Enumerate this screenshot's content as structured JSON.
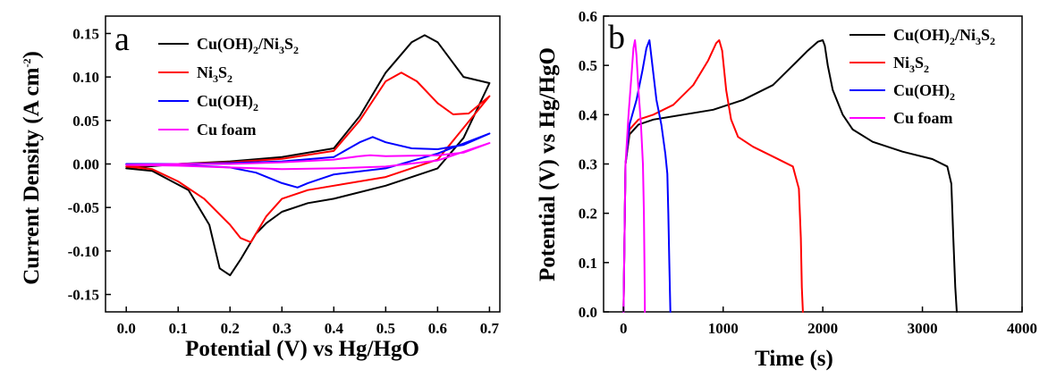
{
  "chart_data": [
    {
      "type": "line",
      "panel": "a",
      "xlabel": "Potential (V) vs Hg/HgO",
      "ylabel_main": "Current Density (A cm",
      "ylabel_sup": "-2",
      "ylabel_end": ")",
      "xlim": [
        -0.04,
        0.72
      ],
      "ylim": [
        -0.17,
        0.17
      ],
      "xticks": [
        0.0,
        0.1,
        0.2,
        0.3,
        0.4,
        0.5,
        0.6,
        0.7
      ],
      "xtick_labels": [
        "0.0",
        "0.1",
        "0.2",
        "0.3",
        "0.4",
        "0.5",
        "0.6",
        "0.7"
      ],
      "yticks": [
        0.15,
        0.1,
        0.05,
        0.0,
        -0.05,
        -0.1,
        -0.15
      ],
      "ytick_labels": [
        "0.15",
        "0.10",
        "0.05",
        "0.00",
        "-0.05",
        "-0.10",
        "-0.15"
      ],
      "legend_position": "top-right",
      "series": [
        {
          "name": "Cu(OH)2/Ni3S2",
          "legend_parts": [
            "Cu(OH)",
            "2",
            "/Ni",
            "3",
            "S",
            "2"
          ],
          "color": "#000000",
          "x": [
            0.0,
            0.1,
            0.2,
            0.3,
            0.4,
            0.45,
            0.5,
            0.55,
            0.575,
            0.6,
            0.65,
            0.7,
            0.7,
            0.65,
            0.6,
            0.5,
            0.4,
            0.35,
            0.3,
            0.27,
            0.25,
            0.22,
            0.2,
            0.18,
            0.16,
            0.12,
            0.05,
            0.0
          ],
          "y": [
            -0.005,
            0.0,
            0.003,
            0.008,
            0.018,
            0.055,
            0.105,
            0.14,
            0.148,
            0.14,
            0.1,
            0.093,
            0.093,
            0.03,
            -0.005,
            -0.025,
            -0.04,
            -0.045,
            -0.055,
            -0.068,
            -0.08,
            -0.11,
            -0.128,
            -0.12,
            -0.07,
            -0.03,
            -0.008,
            -0.005
          ]
        },
        {
          "name": "Ni3S2",
          "legend_parts": [
            "Ni",
            "3",
            "S",
            "2"
          ],
          "color": "#ff0000",
          "x": [
            0.0,
            0.1,
            0.2,
            0.3,
            0.4,
            0.45,
            0.5,
            0.53,
            0.56,
            0.6,
            0.63,
            0.66,
            0.7,
            0.7,
            0.6,
            0.5,
            0.4,
            0.35,
            0.3,
            0.27,
            0.24,
            0.22,
            0.2,
            0.15,
            0.1,
            0.05,
            0.0
          ],
          "y": [
            -0.003,
            0.0,
            0.002,
            0.006,
            0.015,
            0.05,
            0.095,
            0.105,
            0.095,
            0.07,
            0.057,
            0.058,
            0.078,
            0.078,
            0.005,
            -0.015,
            -0.025,
            -0.03,
            -0.04,
            -0.06,
            -0.09,
            -0.085,
            -0.07,
            -0.04,
            -0.02,
            -0.006,
            -0.003
          ]
        },
        {
          "name": "Cu(OH)2",
          "legend_parts": [
            "Cu(OH)",
            "2"
          ],
          "color": "#0000ff",
          "x": [
            0.0,
            0.1,
            0.2,
            0.3,
            0.4,
            0.45,
            0.475,
            0.5,
            0.55,
            0.6,
            0.65,
            0.7,
            0.7,
            0.6,
            0.5,
            0.4,
            0.35,
            0.33,
            0.3,
            0.25,
            0.2,
            0.1,
            0.0
          ],
          "y": [
            0.0,
            0.0,
            0.001,
            0.003,
            0.008,
            0.025,
            0.031,
            0.025,
            0.018,
            0.017,
            0.022,
            0.035,
            0.035,
            0.012,
            -0.005,
            -0.012,
            -0.022,
            -0.027,
            -0.022,
            -0.01,
            -0.004,
            -0.001,
            0.0
          ]
        },
        {
          "name": "Cu foam",
          "legend_parts": [
            "Cu foam"
          ],
          "color": "#ff00ff",
          "x": [
            0.0,
            0.1,
            0.2,
            0.3,
            0.4,
            0.45,
            0.47,
            0.5,
            0.6,
            0.65,
            0.7,
            0.7,
            0.6,
            0.5,
            0.4,
            0.3,
            0.2,
            0.1,
            0.0
          ],
          "y": [
            -0.001,
            0.0,
            0.0,
            0.002,
            0.005,
            0.009,
            0.01,
            0.009,
            0.01,
            0.013,
            0.024,
            0.024,
            0.004,
            -0.003,
            -0.005,
            -0.006,
            -0.004,
            -0.002,
            -0.001
          ]
        }
      ]
    },
    {
      "type": "line",
      "panel": "b",
      "xlabel": "Time (s)",
      "ylabel": "Potential (V) vs Hg/HgO",
      "xlim": [
        -200,
        4000
      ],
      "ylim": [
        0.0,
        0.6
      ],
      "xticks": [
        0,
        1000,
        2000,
        3000,
        4000
      ],
      "xtick_labels": [
        "0",
        "1000",
        "2000",
        "3000",
        "4000"
      ],
      "yticks": [
        0.0,
        0.1,
        0.2,
        0.3,
        0.4,
        0.5,
        0.6
      ],
      "ytick_labels": [
        "0.0",
        "0.1",
        "0.2",
        "0.3",
        "0.4",
        "0.5",
        "0.6"
      ],
      "legend_position": "top-right",
      "series": [
        {
          "name": "Cu(OH)2/Ni3S2",
          "legend_parts": [
            "Cu(OH)",
            "2",
            "/Ni",
            "3",
            "S",
            "2"
          ],
          "color": "#000000",
          "x": [
            0,
            20,
            60,
            150,
            300,
            600,
            900,
            1200,
            1500,
            1700,
            1850,
            1950,
            2000,
            2020,
            2050,
            2100,
            2200,
            2300,
            2500,
            2800,
            3100,
            3250,
            3290,
            3310,
            3330,
            3345
          ],
          "y": [
            0.0,
            0.3,
            0.36,
            0.38,
            0.39,
            0.4,
            0.41,
            0.43,
            0.46,
            0.5,
            0.53,
            0.548,
            0.551,
            0.54,
            0.5,
            0.45,
            0.4,
            0.37,
            0.345,
            0.325,
            0.31,
            0.295,
            0.26,
            0.15,
            0.05,
            0.0
          ]
        },
        {
          "name": "Ni3S2",
          "legend_parts": [
            "Ni",
            "3",
            "S",
            "2"
          ],
          "color": "#ff0000",
          "x": [
            0,
            20,
            60,
            150,
            300,
            500,
            700,
            850,
            930,
            960,
            990,
            1030,
            1080,
            1150,
            1300,
            1500,
            1700,
            1760,
            1780,
            1790,
            1800
          ],
          "y": [
            0.0,
            0.3,
            0.37,
            0.39,
            0.4,
            0.42,
            0.46,
            0.51,
            0.545,
            0.551,
            0.53,
            0.45,
            0.39,
            0.355,
            0.335,
            0.315,
            0.295,
            0.25,
            0.15,
            0.05,
            0.0
          ]
        },
        {
          "name": "Cu(OH)2",
          "legend_parts": [
            "Cu(OH)",
            "2"
          ],
          "color": "#0000ff",
          "x": [
            0,
            20,
            60,
            130,
            190,
            230,
            260,
            290,
            330,
            380,
            420,
            440,
            450,
            460,
            470
          ],
          "y": [
            0.0,
            0.3,
            0.38,
            0.43,
            0.49,
            0.535,
            0.551,
            0.5,
            0.43,
            0.38,
            0.32,
            0.28,
            0.2,
            0.1,
            0.0
          ]
        },
        {
          "name": "Cu foam",
          "legend_parts": [
            "Cu foam"
          ],
          "color": "#ff00ff",
          "x": [
            0,
            20,
            50,
            80,
            100,
            115,
            130,
            150,
            175,
            195,
            205,
            210,
            215
          ],
          "y": [
            0.0,
            0.3,
            0.4,
            0.48,
            0.535,
            0.551,
            0.52,
            0.45,
            0.38,
            0.3,
            0.2,
            0.1,
            0.0
          ]
        }
      ]
    }
  ]
}
